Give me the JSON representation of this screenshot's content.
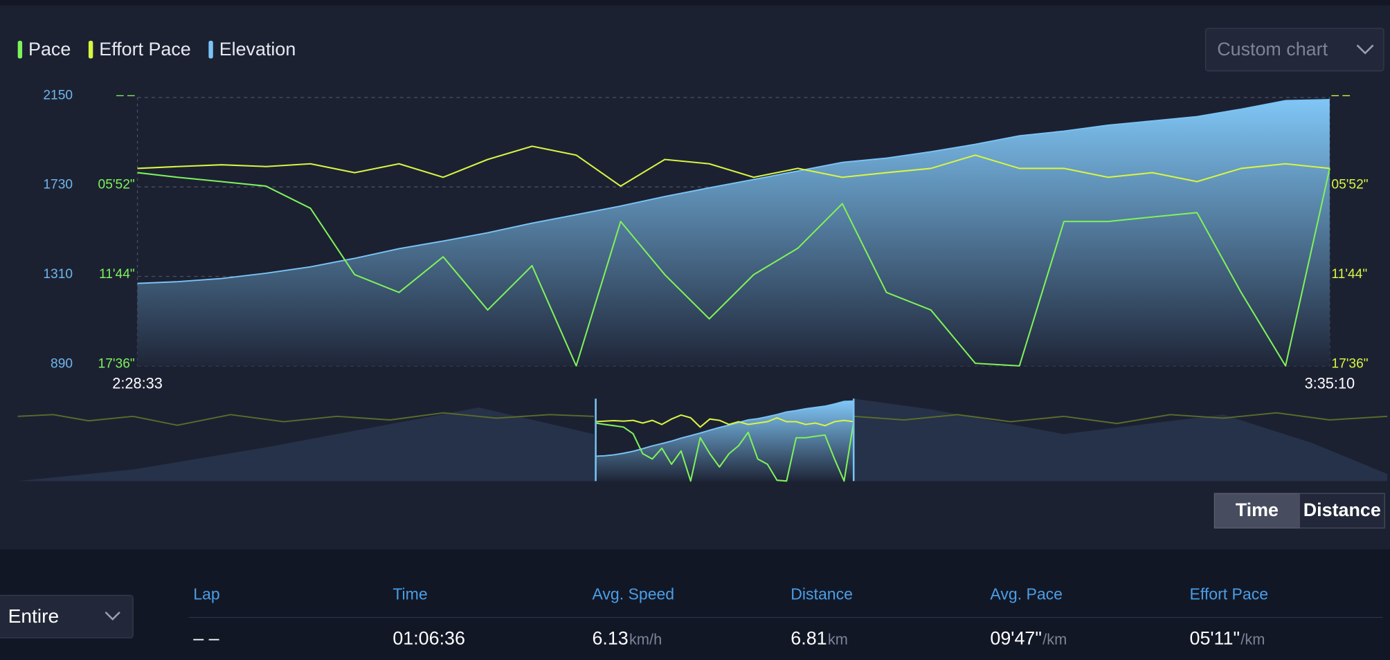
{
  "chart_data": {
    "type": "line",
    "legend": [
      "Pace",
      "Effort Pace",
      "Elevation"
    ],
    "x": [
      8913,
      9047,
      9195,
      9344,
      9493,
      9641,
      9790,
      9938,
      10087,
      10236,
      10384,
      10533,
      10681,
      10830,
      10979,
      11127,
      11276,
      11424,
      11573,
      11722,
      11870,
      12019,
      12167,
      12316,
      12465,
      12613,
      12762,
      12910
    ],
    "xlim": [
      8913,
      12910
    ],
    "xticks": [
      {
        "value": 8913,
        "label": "2:28:33"
      },
      {
        "value": 12910,
        "label": "3:35:10"
      }
    ],
    "ylim": [
      890,
      2150
    ],
    "yticks": [
      890,
      1310,
      1730,
      2150
    ],
    "y2lim": [
      1056,
      0
    ],
    "y2ticks": [
      {
        "value": 1056,
        "label": "17'36\""
      },
      {
        "value": 704,
        "label": "11'44\""
      },
      {
        "value": 352,
        "label": "05'52\""
      },
      {
        "value": 0,
        "label": "– –"
      }
    ],
    "grid": true,
    "series": [
      {
        "name": "Pace",
        "color": "#7ef25a",
        "axis": "y2",
        "values": [
          296,
          314,
          331,
          349,
          436,
          697,
          767,
          627,
          836,
          662,
          1056,
          488,
          697,
          871,
          697,
          593,
          418,
          767,
          836,
          1046,
          1056,
          488,
          488,
          470,
          453,
          767,
          1056,
          279
        ]
      },
      {
        "name": "Effort Pace",
        "color": "#d8f542",
        "axis": "y2",
        "values": [
          279,
          272,
          265,
          272,
          261,
          296,
          261,
          314,
          244,
          192,
          227,
          349,
          244,
          261,
          314,
          279,
          314,
          296,
          279,
          227,
          279,
          279,
          314,
          296,
          331,
          279,
          261,
          279
        ]
      },
      {
        "name": "Elevation",
        "color": "#7ac4f5",
        "axis": "y",
        "area": true,
        "values": [
          1277,
          1285,
          1300,
          1325,
          1355,
          1395,
          1440,
          1476,
          1515,
          1560,
          1600,
          1640,
          1685,
          1726,
          1765,
          1805,
          1845,
          1865,
          1895,
          1930,
          1970,
          1992,
          2020,
          2040,
          2060,
          2095,
          2135,
          2140
        ]
      }
    ]
  },
  "controls": {
    "chart_select": "Custom chart",
    "toggle": [
      "Time",
      "Distance"
    ],
    "range_select": "Entire"
  },
  "table": {
    "headers": [
      "Lap",
      "Time",
      "Avg. Speed",
      "Distance",
      "Avg. Pace",
      "Effort Pace"
    ],
    "rows": [
      [
        {
          "text": "– –"
        },
        {
          "text": "01:06:36"
        },
        {
          "text": "6.13",
          "unit": "km/h"
        },
        {
          "text": "6.81",
          "unit": "km"
        },
        {
          "text": "09'47\"",
          "unit": "/km"
        },
        {
          "text": "05'11\"",
          "unit": "/km"
        }
      ]
    ]
  }
}
